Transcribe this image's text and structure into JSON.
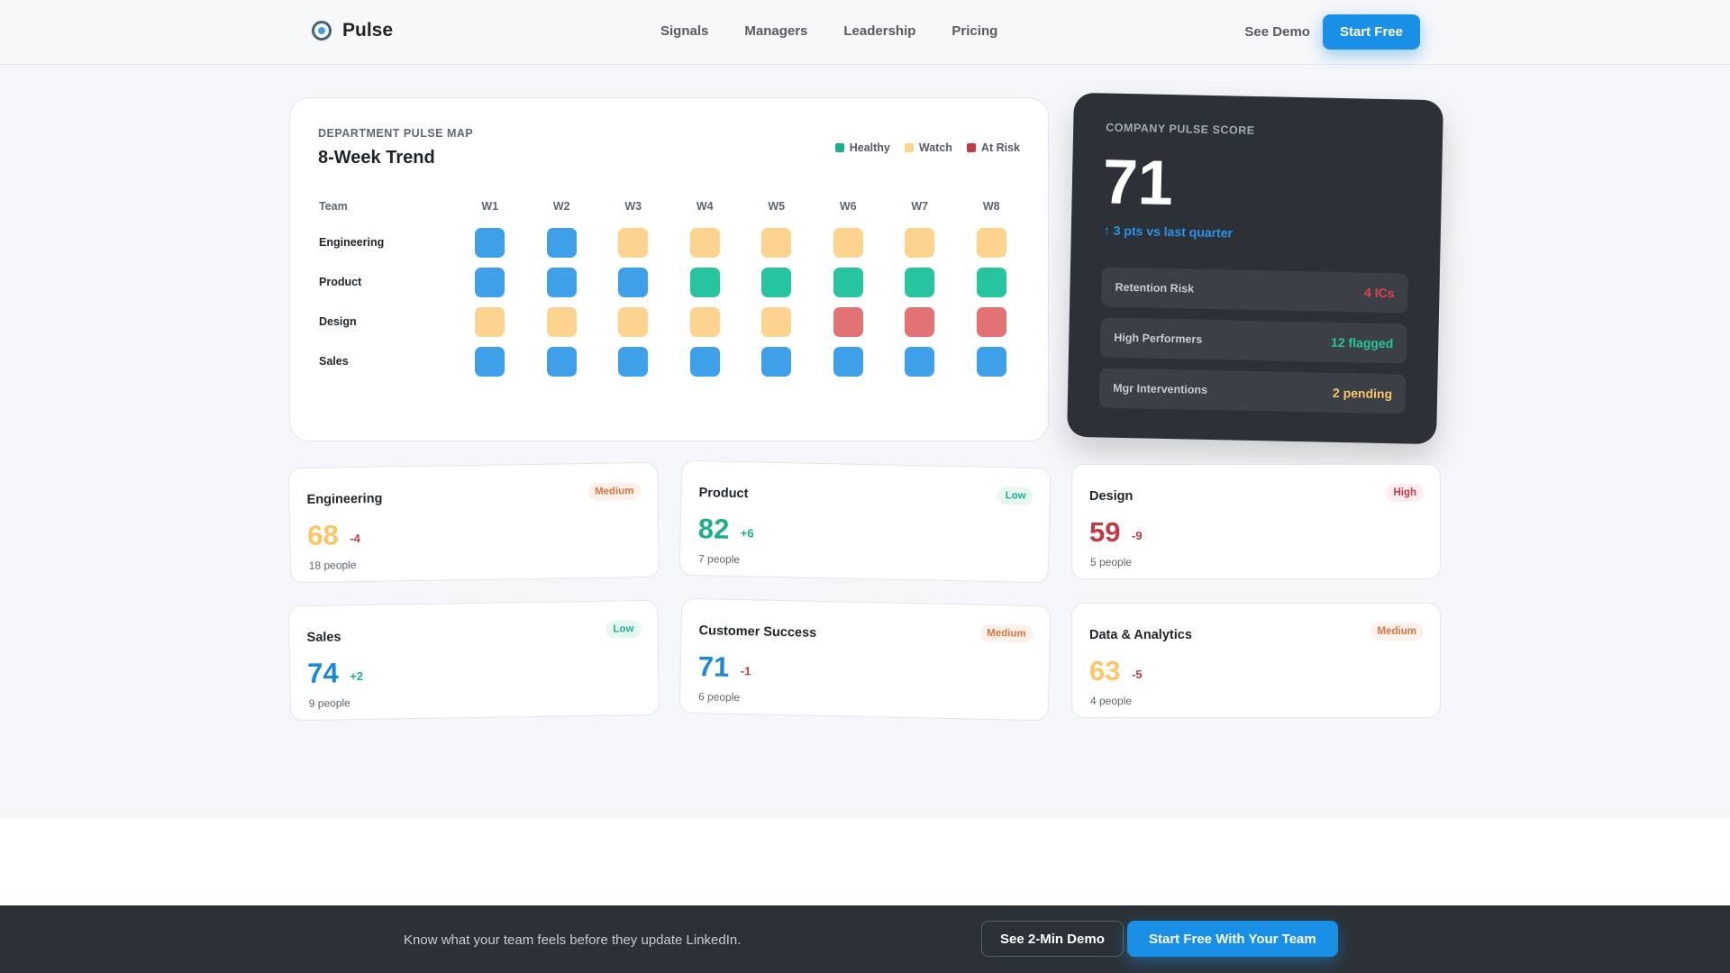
{
  "nav": {
    "brand": "Pulse",
    "links": [
      "Signals",
      "Managers",
      "Leadership",
      "Pricing"
    ],
    "see_demo": "See Demo",
    "start_free": "Start Free"
  },
  "heatmap": {
    "eyebrow": "DEPARTMENT PULSE MAP",
    "title": "8-Week Trend",
    "legend": [
      {
        "label": "Healthy",
        "color": "#1fae8c"
      },
      {
        "label": "Watch",
        "color": "#fcd48f"
      },
      {
        "label": "At Risk",
        "color": "#c23a45"
      }
    ],
    "team_header": "Team",
    "weeks": [
      "W1",
      "W2",
      "W3",
      "W4",
      "W5",
      "W6",
      "W7",
      "W8"
    ],
    "rows": [
      {
        "team": "Engineering",
        "cells": [
          "blue",
          "blue",
          "watch",
          "watch",
          "watch",
          "watch",
          "watch",
          "watch"
        ]
      },
      {
        "team": "Product",
        "cells": [
          "blue",
          "blue",
          "blue",
          "healthy",
          "healthy",
          "healthy",
          "healthy",
          "healthy"
        ]
      },
      {
        "team": "Design",
        "cells": [
          "watch",
          "watch",
          "watch",
          "watch",
          "watch",
          "risk",
          "risk",
          "risk"
        ]
      },
      {
        "team": "Sales",
        "cells": [
          "blue",
          "blue",
          "blue",
          "blue",
          "blue",
          "blue",
          "blue",
          "blue"
        ]
      }
    ],
    "cell_colors": {
      "blue": "#3ea0e8",
      "healthy": "#27c4a0",
      "watch": "#fcd48f",
      "risk": "#e27273"
    }
  },
  "score": {
    "eyebrow": "COMPANY PULSE SCORE",
    "value": "71",
    "delta": "↑ 3 pts vs last quarter",
    "stats": [
      {
        "label": "Retention Risk",
        "value": "4 ICs",
        "color": "#e0434c"
      },
      {
        "label": "High Performers",
        "value": "12 flagged",
        "color": "#27c4a0"
      },
      {
        "label": "Mgr Interventions",
        "value": "2 pending",
        "color": "#fcc668"
      }
    ]
  },
  "departments": [
    {
      "name": "Engineering",
      "badge": "Medium",
      "score": "68",
      "delta": "-4",
      "people": "18 people"
    },
    {
      "name": "Product",
      "badge": "Low",
      "score": "82",
      "delta": "+6",
      "people": "7 people"
    },
    {
      "name": "Design",
      "badge": "High",
      "score": "59",
      "delta": "-9",
      "people": "5 people"
    },
    {
      "name": "Sales",
      "badge": "Low",
      "score": "74",
      "delta": "+2",
      "people": "9 people"
    },
    {
      "name": "Customer Success",
      "badge": "Medium",
      "score": "71",
      "delta": "-1",
      "people": "6 people"
    },
    {
      "name": "Data & Analytics",
      "badge": "Medium",
      "score": "63",
      "delta": "-5",
      "people": "4 people"
    }
  ],
  "footer": {
    "text": "Know what your team feels before they update LinkedIn.",
    "demo_button": "See 2-Min Demo",
    "start_button": "Start Free With Your Team"
  }
}
